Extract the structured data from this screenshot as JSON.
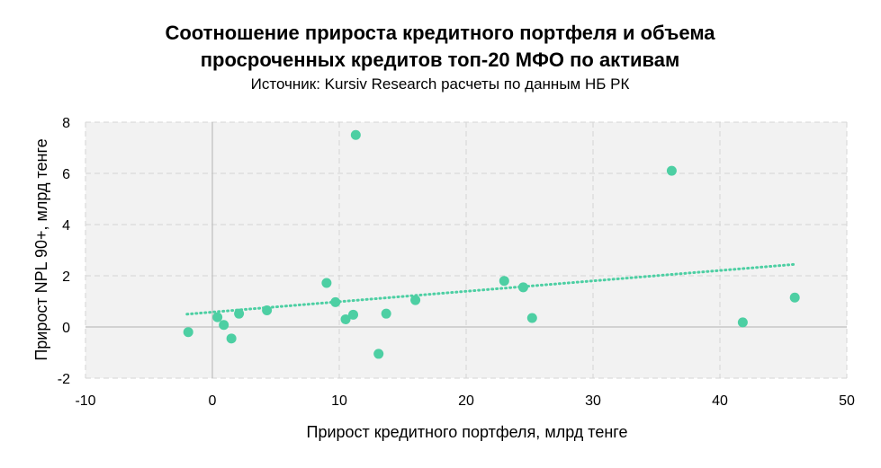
{
  "chart_data": {
    "type": "scatter",
    "title_line1": "Соотношение прироста кредитного портфеля и объема",
    "title_line2": "просроченных кредитов топ-20 МФО по активам",
    "subtitle": "Источник: Kursiv Research расчеты по данным НБ РК",
    "xlabel": "Прирост кредитного портфеля, млрд тенге",
    "ylabel": "Прирост NPL 90+, млрд тенге",
    "xlim": [
      -10,
      50
    ],
    "ylim": [
      -2,
      8
    ],
    "xticks": [
      -10,
      0,
      10,
      20,
      30,
      40,
      50
    ],
    "yticks": [
      -2,
      0,
      2,
      4,
      6,
      8
    ],
    "xtick_labels": [
      "-10",
      "0",
      "10",
      "20",
      "30",
      "40",
      "50"
    ],
    "ytick_labels": [
      "-2",
      "0",
      "2",
      "4",
      "6",
      "8"
    ],
    "grid": true,
    "trendline": {
      "style": "dotted",
      "x": [
        -2,
        46
      ],
      "y": [
        0.5,
        2.45
      ]
    },
    "points": [
      {
        "x": -1.9,
        "y": -0.2
      },
      {
        "x": 0.4,
        "y": 0.38
      },
      {
        "x": 0.9,
        "y": 0.08
      },
      {
        "x": 1.5,
        "y": -0.45
      },
      {
        "x": 2.1,
        "y": 0.52
      },
      {
        "x": 4.3,
        "y": 0.65
      },
      {
        "x": 9.0,
        "y": 1.72
      },
      {
        "x": 9.7,
        "y": 0.97
      },
      {
        "x": 10.5,
        "y": 0.3
      },
      {
        "x": 11.1,
        "y": 0.48
      },
      {
        "x": 11.3,
        "y": 7.5
      },
      {
        "x": 13.1,
        "y": -1.05
      },
      {
        "x": 13.7,
        "y": 0.52
      },
      {
        "x": 16.0,
        "y": 1.05
      },
      {
        "x": 23.0,
        "y": 1.8
      },
      {
        "x": 24.5,
        "y": 1.55
      },
      {
        "x": 25.2,
        "y": 0.35
      },
      {
        "x": 36.2,
        "y": 6.1
      },
      {
        "x": 41.8,
        "y": 0.18
      },
      {
        "x": 45.9,
        "y": 1.15
      }
    ],
    "colors": {
      "point": "#4dcfa3",
      "trend": "#4dcfa3",
      "plot_bg": "#f2f2f2",
      "grid": "#d4d4d4",
      "zero_axis": "#bfbfbf"
    }
  }
}
